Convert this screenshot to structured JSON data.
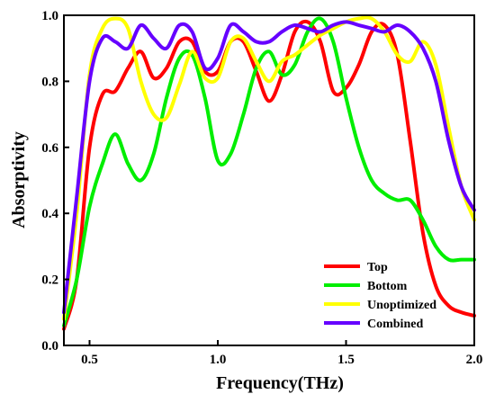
{
  "chart_data": {
    "type": "line",
    "title": "",
    "xlabel": "Frequency(THz)",
    "ylabel": "Absorptivity",
    "xlim": [
      0.4,
      2.0
    ],
    "ylim": [
      0.0,
      1.0
    ],
    "xticks": [
      0.5,
      1.0,
      1.5,
      2.0
    ],
    "xtick_labels": [
      "0.5",
      "1.0",
      "1.5",
      "2.0"
    ],
    "yticks": [
      0.0,
      0.2,
      0.4,
      0.6,
      0.8,
      1.0
    ],
    "ytick_labels": [
      "0.0",
      "0.2",
      "0.4",
      "0.6",
      "0.8",
      "1.0"
    ],
    "grid": false,
    "legend_position": "bottom-right",
    "series": [
      {
        "name": "Top",
        "color": "#ff0000",
        "x": [
          0.4,
          0.45,
          0.5,
          0.55,
          0.6,
          0.65,
          0.7,
          0.75,
          0.8,
          0.85,
          0.9,
          0.95,
          1.0,
          1.05,
          1.1,
          1.15,
          1.2,
          1.25,
          1.3,
          1.35,
          1.4,
          1.45,
          1.5,
          1.55,
          1.6,
          1.65,
          1.7,
          1.75,
          1.8,
          1.85,
          1.9,
          1.95,
          2.0
        ],
        "y": [
          0.05,
          0.2,
          0.6,
          0.76,
          0.77,
          0.84,
          0.89,
          0.81,
          0.84,
          0.92,
          0.92,
          0.83,
          0.83,
          0.92,
          0.92,
          0.83,
          0.74,
          0.82,
          0.95,
          0.98,
          0.92,
          0.77,
          0.78,
          0.85,
          0.95,
          0.97,
          0.88,
          0.62,
          0.34,
          0.18,
          0.12,
          0.1,
          0.09
        ]
      },
      {
        "name": "Bottom",
        "color": "#00ee00",
        "x": [
          0.4,
          0.45,
          0.5,
          0.55,
          0.6,
          0.65,
          0.7,
          0.75,
          0.8,
          0.85,
          0.9,
          0.95,
          1.0,
          1.05,
          1.1,
          1.15,
          1.2,
          1.25,
          1.3,
          1.35,
          1.4,
          1.45,
          1.5,
          1.55,
          1.6,
          1.65,
          1.7,
          1.75,
          1.8,
          1.85,
          1.9,
          1.95,
          2.0
        ],
        "y": [
          0.06,
          0.2,
          0.42,
          0.55,
          0.64,
          0.55,
          0.5,
          0.58,
          0.75,
          0.87,
          0.88,
          0.75,
          0.56,
          0.58,
          0.7,
          0.84,
          0.89,
          0.82,
          0.85,
          0.95,
          0.99,
          0.92,
          0.75,
          0.6,
          0.5,
          0.46,
          0.44,
          0.44,
          0.38,
          0.3,
          0.26,
          0.26,
          0.26
        ]
      },
      {
        "name": "Unoptimized",
        "color": "#ffff00",
        "x": [
          0.4,
          0.45,
          0.5,
          0.55,
          0.6,
          0.65,
          0.7,
          0.75,
          0.8,
          0.85,
          0.9,
          0.95,
          1.0,
          1.05,
          1.1,
          1.15,
          1.2,
          1.25,
          1.3,
          1.35,
          1.4,
          1.45,
          1.5,
          1.55,
          1.6,
          1.65,
          1.7,
          1.75,
          1.8,
          1.85,
          1.9,
          1.95,
          2.0
        ],
        "y": [
          0.08,
          0.4,
          0.82,
          0.96,
          0.99,
          0.96,
          0.8,
          0.7,
          0.69,
          0.79,
          0.89,
          0.81,
          0.81,
          0.92,
          0.93,
          0.86,
          0.8,
          0.86,
          0.88,
          0.91,
          0.94,
          0.96,
          0.98,
          0.99,
          0.99,
          0.95,
          0.88,
          0.86,
          0.92,
          0.85,
          0.66,
          0.48,
          0.38
        ]
      },
      {
        "name": "Combined",
        "color": "#6600ff",
        "x": [
          0.4,
          0.45,
          0.5,
          0.55,
          0.6,
          0.65,
          0.7,
          0.75,
          0.8,
          0.85,
          0.9,
          0.95,
          1.0,
          1.05,
          1.1,
          1.15,
          1.2,
          1.25,
          1.3,
          1.35,
          1.4,
          1.45,
          1.5,
          1.55,
          1.6,
          1.65,
          1.7,
          1.75,
          1.8,
          1.85,
          1.9,
          1.95,
          2.0
        ],
        "y": [
          0.1,
          0.45,
          0.8,
          0.93,
          0.92,
          0.9,
          0.97,
          0.93,
          0.9,
          0.97,
          0.95,
          0.84,
          0.87,
          0.97,
          0.95,
          0.92,
          0.92,
          0.95,
          0.97,
          0.96,
          0.95,
          0.97,
          0.98,
          0.97,
          0.96,
          0.95,
          0.97,
          0.95,
          0.9,
          0.8,
          0.62,
          0.48,
          0.41
        ]
      }
    ]
  }
}
